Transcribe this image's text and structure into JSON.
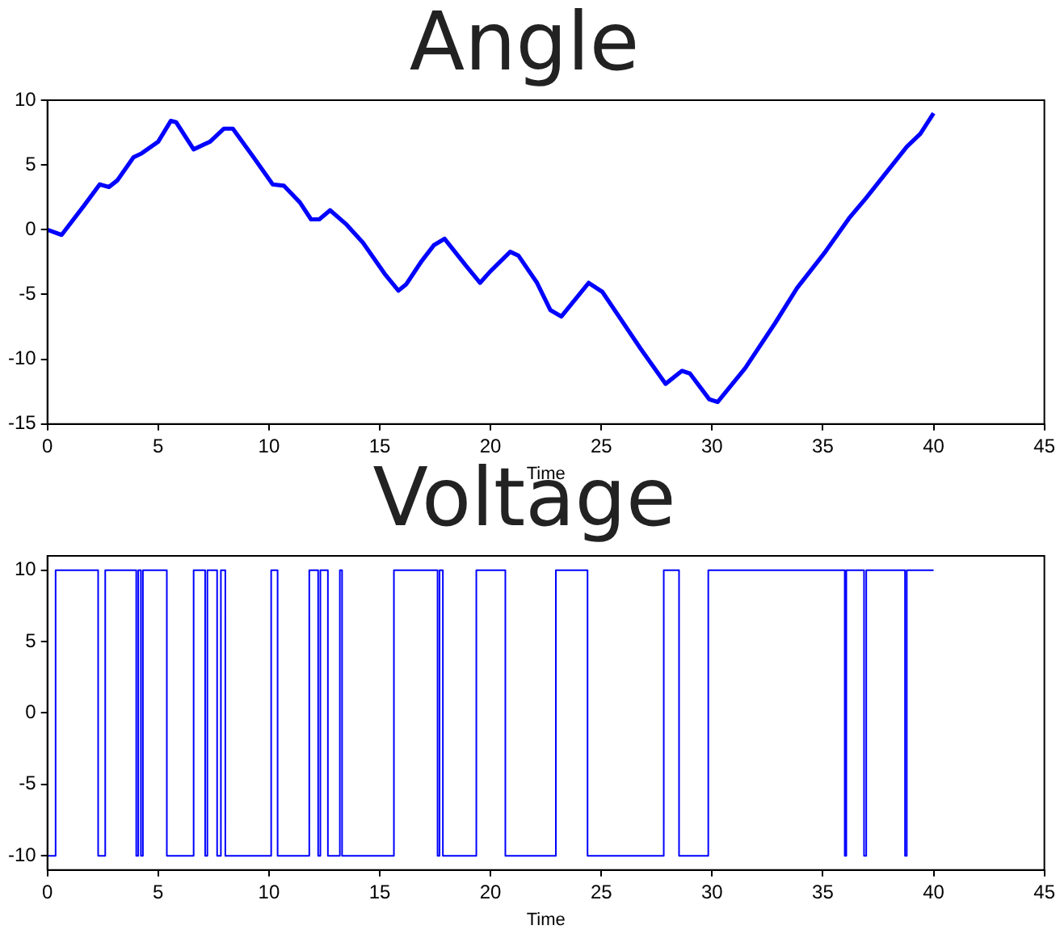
{
  "chart_data": [
    {
      "type": "line",
      "title": "Angle",
      "xlabel": "Time",
      "color": "#0000ff",
      "marker": "none",
      "grid": false,
      "x": [
        0,
        0.64,
        1.67,
        2.36,
        2.78,
        3.15,
        3.89,
        4.26,
        5.0,
        5.57,
        5.81,
        6.6,
        7.34,
        7.96,
        8.37,
        9.3,
        10.17,
        10.67,
        11.4,
        11.9,
        12.27,
        12.76,
        13.5,
        14.24,
        15.22,
        15.84,
        16.2,
        16.9,
        17.44,
        17.93,
        18.9,
        19.53,
        20.0,
        20.89,
        21.26,
        22.1,
        22.7,
        23.2,
        24.43,
        25.05,
        26.78,
        27.9,
        28.64,
        29.0,
        29.88,
        30.25,
        31.49,
        32.85,
        33.84,
        35.07,
        36.19,
        36.93,
        38.79,
        39.4,
        40.0
      ],
      "values": [
        0,
        -0.4,
        1.9,
        3.5,
        3.3,
        3.8,
        5.6,
        5.9,
        6.8,
        8.4,
        8.3,
        6.2,
        6.8,
        7.8,
        7.8,
        5.6,
        3.5,
        3.4,
        2.1,
        0.8,
        0.8,
        1.5,
        0.4,
        -1.0,
        -3.4,
        -4.7,
        -4.2,
        -2.4,
        -1.2,
        -0.7,
        -2.8,
        -4.1,
        -3.2,
        -1.7,
        -2.0,
        -4.1,
        -6.2,
        -6.7,
        -4.1,
        -4.8,
        -9.2,
        -11.9,
        -10.9,
        -11.1,
        -13.1,
        -13.3,
        -10.7,
        -7.2,
        -4.5,
        -1.8,
        0.9,
        2.4,
        6.4,
        7.4,
        9.0
      ],
      "xlim": [
        0,
        45
      ],
      "xticks": [
        0,
        5,
        10,
        15,
        20,
        25,
        30,
        35,
        40,
        45
      ],
      "ylim": [
        -15,
        10
      ],
      "yticks": [
        -15,
        -10,
        -5,
        0,
        5,
        10
      ]
    },
    {
      "type": "step",
      "title": "Voltage",
      "xlabel": "Time",
      "color": "#0000ff",
      "marker": "none",
      "grid": false,
      "x": [
        0,
        0.37,
        2.29,
        2.61,
        4.01,
        4.1,
        4.22,
        4.31,
        5.39,
        6.6,
        7.12,
        7.22,
        7.66,
        7.83,
        8.03,
        10.1,
        10.39,
        11.82,
        12.22,
        12.32,
        12.66,
        13.2,
        13.3,
        15.64,
        17.61,
        17.7,
        17.85,
        19.36,
        20.67,
        22.95,
        24.38,
        27.82,
        28.51,
        29.83,
        35.99,
        36.06,
        36.86,
        36.96,
        38.71,
        38.79,
        40
      ],
      "values": [
        -10,
        10,
        -10,
        10,
        -10,
        10,
        -10,
        10,
        -10,
        10,
        -10,
        10,
        -10,
        10,
        -10,
        10,
        -10,
        10,
        -10,
        10,
        -10,
        10,
        -10,
        10,
        -10,
        10,
        -10,
        10,
        -10,
        10,
        -10,
        10,
        -10,
        10,
        -10,
        10,
        -10,
        10,
        -10,
        10,
        10
      ],
      "xlim": [
        0,
        45
      ],
      "xticks": [
        0,
        5,
        10,
        15,
        20,
        25,
        30,
        35,
        40,
        45
      ],
      "ylim": [
        -11,
        11
      ],
      "yticks": [
        -10,
        -5,
        0,
        5,
        10
      ]
    }
  ]
}
